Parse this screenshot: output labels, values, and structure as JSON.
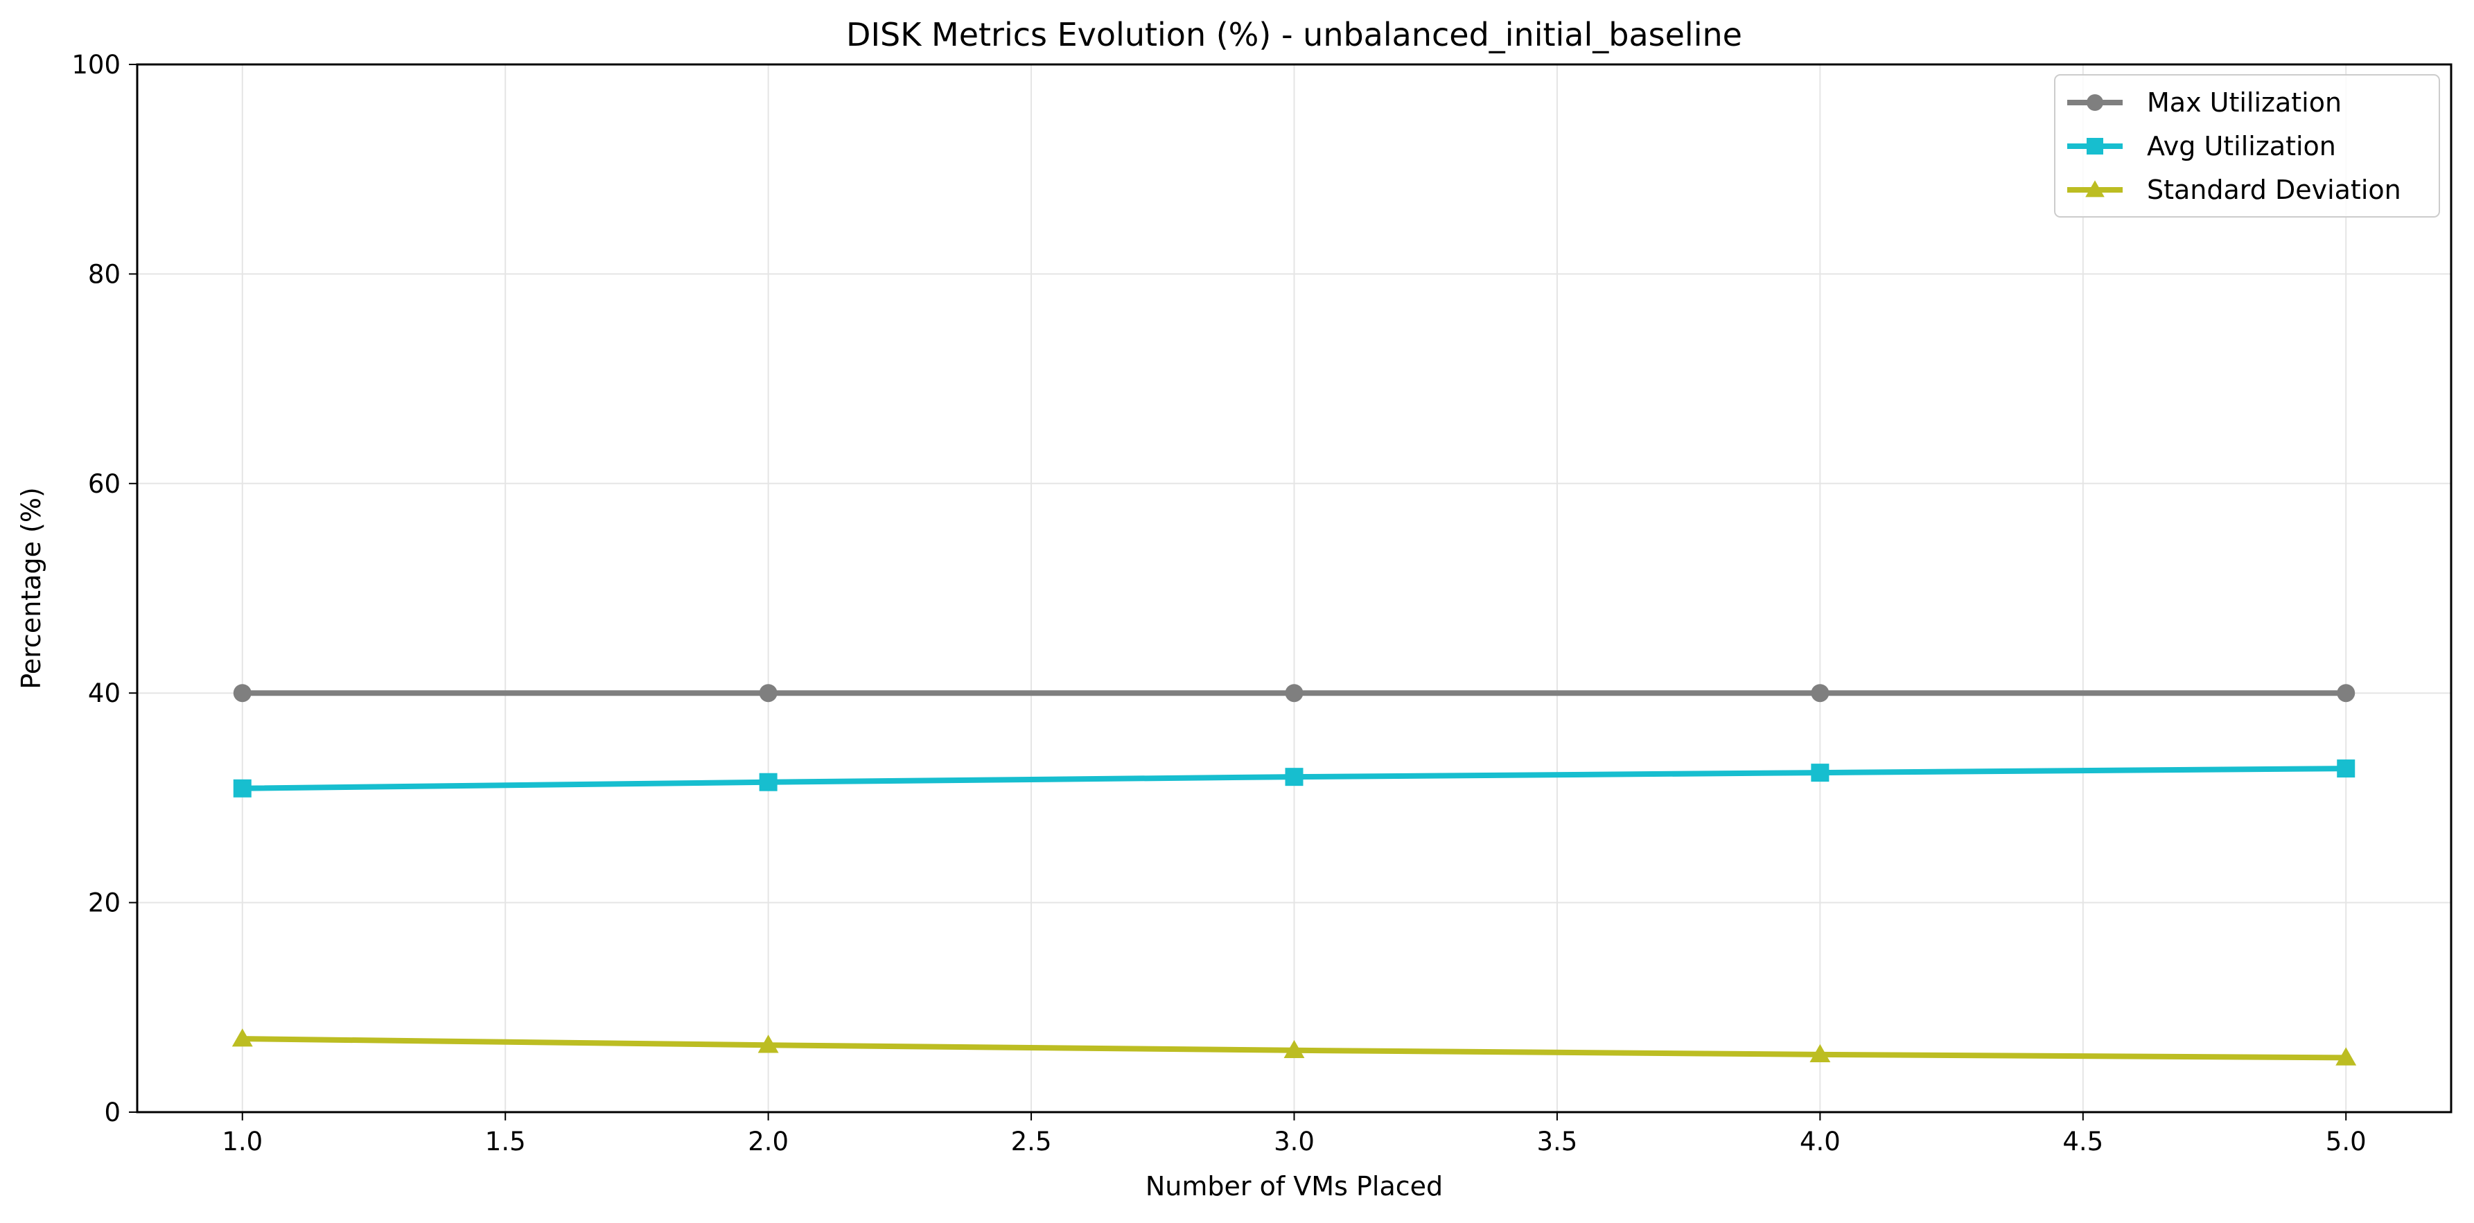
{
  "chart_data": {
    "type": "line",
    "title": "DISK Metrics Evolution (%) - unbalanced_initial_baseline",
    "xlabel": "Number of VMs Placed",
    "ylabel": "Percentage (%)",
    "xlim": [
      0.8,
      5.2
    ],
    "ylim": [
      0,
      100
    ],
    "x_ticks": [
      1.0,
      1.5,
      2.0,
      2.5,
      3.0,
      3.5,
      4.0,
      4.5,
      5.0
    ],
    "x_tick_labels": [
      "1.0",
      "1.5",
      "2.0",
      "2.5",
      "3.0",
      "3.5",
      "4.0",
      "4.5",
      "5.0"
    ],
    "y_ticks": [
      0,
      20,
      40,
      60,
      80,
      100
    ],
    "y_tick_labels": [
      "0",
      "20",
      "40",
      "60",
      "80",
      "100"
    ],
    "grid": true,
    "legend_position": "top-right",
    "x": [
      1,
      2,
      3,
      4,
      5
    ],
    "series": [
      {
        "name": "Max Utilization",
        "values": [
          40.0,
          40.0,
          40.0,
          40.0,
          40.0
        ],
        "color": "#7f7f7f",
        "marker": "circle"
      },
      {
        "name": "Avg Utilization",
        "values": [
          30.9,
          31.5,
          32.0,
          32.4,
          32.8
        ],
        "color": "#17becf",
        "marker": "square"
      },
      {
        "name": "Standard Deviation",
        "values": [
          7.0,
          6.4,
          5.9,
          5.5,
          5.2
        ],
        "color": "#bcbd22",
        "marker": "triangle"
      }
    ]
  }
}
